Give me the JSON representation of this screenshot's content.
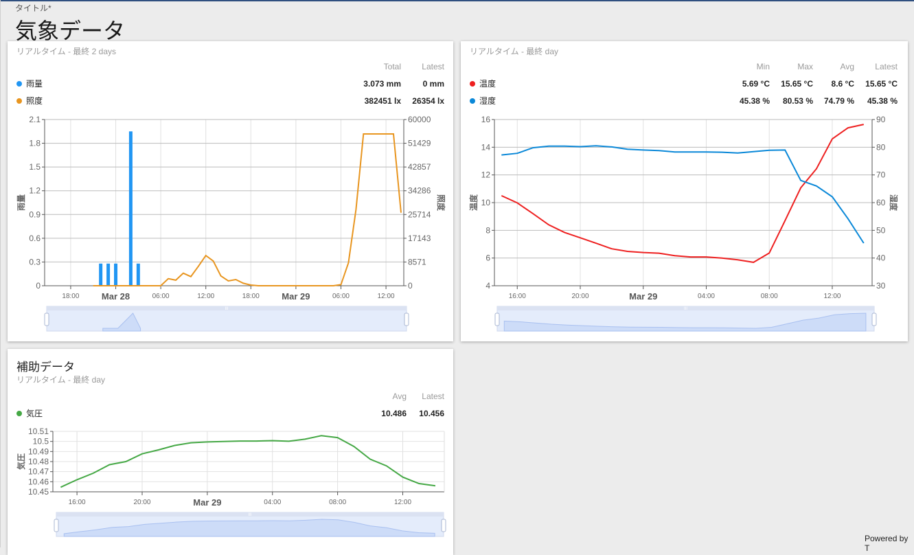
{
  "page": {
    "title_label": "タイトル*",
    "title": "気象データ",
    "powered_by": "Powered by T"
  },
  "cards": [
    {
      "subtitle": "リアルタイム - 最終 2 days",
      "columns": [
        "Total",
        "Latest"
      ],
      "rows": [
        {
          "name": "雨量",
          "color": "#2196f3",
          "values": [
            "3.073 mm",
            "0 mm"
          ]
        },
        {
          "name": "照度",
          "color": "#e8951f",
          "values": [
            "382451 lx",
            "26354 lx"
          ]
        }
      ]
    },
    {
      "subtitle": "リアルタイム - 最終 day",
      "columns": [
        "Min",
        "Max",
        "Avg",
        "Latest"
      ],
      "rows": [
        {
          "name": "温度",
          "color": "#ee2020",
          "values": [
            "5.69 °C",
            "15.65 °C",
            "8.6 °C",
            "15.65 °C"
          ]
        },
        {
          "name": "湿度",
          "color": "#0a88d8",
          "values": [
            "45.38 %",
            "80.53 %",
            "74.79 %",
            "45.38 %"
          ]
        }
      ]
    },
    {
      "title": "補助データ",
      "subtitle": "リアルタイム - 最終 day",
      "columns": [
        "Avg",
        "Latest"
      ],
      "rows": [
        {
          "name": "気圧",
          "color": "#45a845",
          "values": [
            "10.486",
            "10.456"
          ]
        }
      ]
    }
  ],
  "chart_data": [
    {
      "type": "bar+line",
      "x_unit": "hours since Mar 27 00:00",
      "xrange": [
        14.53,
        62.37
      ],
      "x_ticks": [
        {
          "t": 18,
          "label": "18:00"
        },
        {
          "t": 24,
          "label": "Mar 28",
          "major": true
        },
        {
          "t": 30,
          "label": "06:00"
        },
        {
          "t": 36,
          "label": "12:00"
        },
        {
          "t": 42,
          "label": "18:00"
        },
        {
          "t": 48,
          "label": "Mar 29",
          "major": true
        },
        {
          "t": 54,
          "label": "06:00"
        },
        {
          "t": 60,
          "label": "12:00"
        }
      ],
      "y_left": {
        "label": "雨量",
        "range": [
          0,
          2.1
        ],
        "ticks": [
          "0",
          "0.3",
          "0.6",
          "0.9",
          "1.2",
          "1.5",
          "1.8",
          "2.1"
        ]
      },
      "y_right": {
        "label": "照度",
        "range": [
          0,
          60000
        ],
        "ticks": [
          "0",
          "8571",
          "17143",
          "25714",
          "34286",
          "42857",
          "51429",
          "60000"
        ]
      },
      "series": [
        {
          "name": "雨量",
          "type": "bar",
          "axis": "left",
          "color": "#2196f3",
          "x": [
            22,
            23,
            24,
            26,
            27
          ],
          "values": [
            0.28,
            0.28,
            0.28,
            1.95,
            0.28
          ]
        },
        {
          "name": "照度",
          "type": "line",
          "axis": "right",
          "color": "#e8951f",
          "x": [
            21,
            22,
            23,
            24,
            25,
            26,
            27,
            28,
            29,
            30,
            31,
            32,
            33,
            34,
            35,
            36,
            37,
            38,
            39,
            40,
            41,
            42,
            43,
            44,
            45,
            46,
            47,
            48,
            49,
            50,
            51,
            52,
            53,
            54,
            55,
            56,
            57,
            58,
            59,
            60,
            61,
            62
          ],
          "values": [
            0,
            0,
            0,
            0,
            0,
            0,
            0,
            0,
            0,
            0,
            2560,
            2000,
            4545,
            3300,
            7000,
            10900,
            8900,
            3550,
            1740,
            2230,
            900,
            250,
            0,
            0,
            0,
            0,
            0,
            0,
            0,
            0,
            0,
            0,
            0,
            400,
            8260,
            27500,
            54800,
            54800,
            54800,
            54800,
            54800,
            26354
          ]
        }
      ]
    },
    {
      "type": "line",
      "x_unit": "hours since Mar 28 00:00",
      "xrange": [
        14.55,
        38.53
      ],
      "x_ticks": [
        {
          "t": 16,
          "label": "16:00"
        },
        {
          "t": 20,
          "label": "20:00"
        },
        {
          "t": 24,
          "label": "Mar 29",
          "major": true
        },
        {
          "t": 28,
          "label": "04:00"
        },
        {
          "t": 32,
          "label": "08:00"
        },
        {
          "t": 36,
          "label": "12:00"
        }
      ],
      "y_left": {
        "label": "温度",
        "range": [
          4,
          16
        ],
        "ticks": [
          "4",
          "6",
          "8",
          "10",
          "12",
          "14",
          "16"
        ]
      },
      "y_right": {
        "label": "湿度",
        "range": [
          30,
          90
        ],
        "ticks": [
          "30",
          "40",
          "50",
          "60",
          "70",
          "80",
          "90"
        ]
      },
      "series": [
        {
          "name": "温度",
          "type": "line",
          "axis": "left",
          "color": "#ee2020",
          "x": [
            15,
            16,
            17,
            18,
            19,
            20,
            21,
            22,
            23,
            24,
            25,
            26,
            27,
            28,
            29,
            30,
            31,
            32,
            33,
            34,
            35,
            36,
            37,
            38
          ],
          "values": [
            10.5,
            9.98,
            9.2,
            8.4,
            7.85,
            7.46,
            7.07,
            6.67,
            6.48,
            6.4,
            6.35,
            6.17,
            6.08,
            6.08,
            6.0,
            5.87,
            5.69,
            6.36,
            8.7,
            11.07,
            12.45,
            14.6,
            15.4,
            15.65
          ]
        },
        {
          "name": "湿度",
          "type": "line",
          "axis": "right",
          "color": "#0a88d8",
          "x": [
            15,
            16,
            17,
            18,
            19,
            20,
            21,
            22,
            23,
            24,
            25,
            26,
            27,
            28,
            29,
            30,
            31,
            32,
            33,
            34,
            35,
            36,
            37,
            38
          ],
          "values": [
            77.2,
            77.8,
            79.8,
            80.4,
            80.4,
            80.2,
            80.53,
            80.1,
            79.3,
            79.0,
            78.8,
            78.3,
            78.3,
            78.3,
            78.2,
            77.9,
            78.4,
            78.9,
            79.0,
            68.0,
            66.0,
            62.1,
            54.2,
            45.38
          ]
        }
      ]
    },
    {
      "type": "line",
      "x_unit": "hours since Mar 28 00:00",
      "xrange": [
        14.52,
        38.55
      ],
      "x_ticks": [
        {
          "t": 16,
          "label": "16:00"
        },
        {
          "t": 20,
          "label": "20:00"
        },
        {
          "t": 24,
          "label": "Mar 29",
          "major": true
        },
        {
          "t": 28,
          "label": "04:00"
        },
        {
          "t": 32,
          "label": "08:00"
        },
        {
          "t": 36,
          "label": "12:00"
        }
      ],
      "y_left": {
        "label": "気圧",
        "range": [
          10.45,
          10.51
        ],
        "ticks": [
          "10.45",
          "10.46",
          "10.47",
          "10.48",
          "10.49",
          "10.5",
          "10.51"
        ]
      },
      "series": [
        {
          "name": "気圧",
          "type": "line",
          "axis": "left",
          "color": "#45a845",
          "x": [
            15,
            16,
            17,
            18,
            19,
            20,
            21,
            22,
            23,
            24,
            25,
            26,
            27,
            28,
            29,
            30,
            31,
            32,
            33,
            34,
            35,
            36,
            37,
            38
          ],
          "values": [
            10.4546,
            10.462,
            10.4685,
            10.4769,
            10.48,
            10.4877,
            10.4916,
            10.496,
            10.4987,
            10.4995,
            10.4999,
            10.5004,
            10.5004,
            10.5008,
            10.5002,
            10.5022,
            10.5057,
            10.5038,
            10.495,
            10.4824,
            10.4758,
            10.4646,
            10.4582,
            10.456
          ]
        }
      ]
    }
  ]
}
